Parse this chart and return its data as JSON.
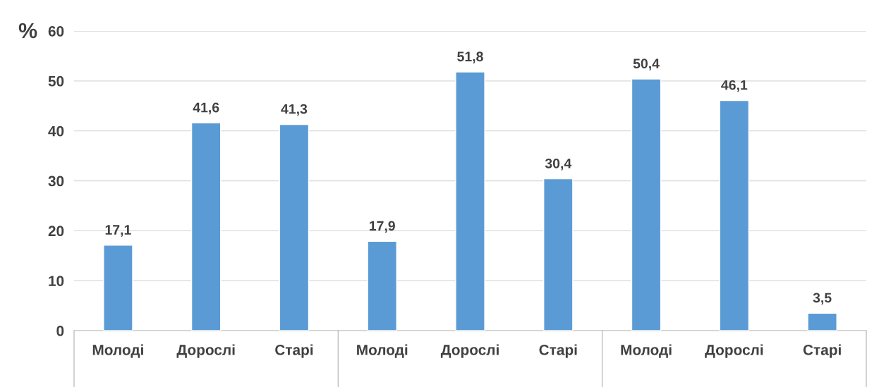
{
  "chart_data": {
    "type": "bar",
    "ylabel": "%",
    "categories": [
      "Молоді",
      "Дорослі",
      "Старі",
      "Молоді",
      "Дорослі",
      "Старі",
      "Молоді",
      "Дорослі",
      "Старі"
    ],
    "values": [
      17.1,
      41.6,
      41.3,
      17.9,
      51.8,
      30.4,
      50.4,
      46.1,
      3.5
    ],
    "value_labels": [
      "17,1",
      "41,6",
      "41,3",
      "17,9",
      "51,8",
      "30,4",
      "50,4",
      "46,1",
      "3,5"
    ],
    "color": "#5b9bd5",
    "ylim": [
      0,
      60
    ],
    "yticks": [
      0,
      10,
      20,
      30,
      40,
      50,
      60
    ],
    "grid": "y",
    "legend": false
  }
}
